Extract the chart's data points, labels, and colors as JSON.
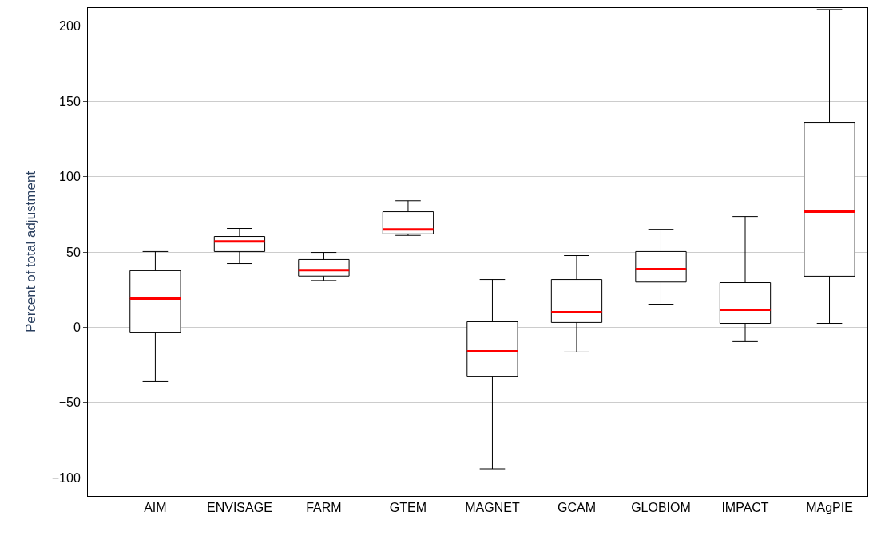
{
  "chart_data": {
    "type": "box",
    "ylabel": "Percent of total adjustment",
    "categories": [
      "AIM",
      "ENVISAGE",
      "FARM",
      "GTEM",
      "MAGNET",
      "GCAM",
      "GLOBIOM",
      "IMPACT",
      "MAgPIE"
    ],
    "boxes": [
      {
        "low": -36,
        "q1": -3.7,
        "median": 19,
        "q3": 37.6,
        "high": 50.3
      },
      {
        "low": 42.3,
        "q1": 50.3,
        "median": 57,
        "q3": 60.3,
        "high": 65.6
      },
      {
        "low": 31,
        "q1": 34,
        "median": 38,
        "q3": 45,
        "high": 49.7
      },
      {
        "low": 61,
        "q1": 62,
        "median": 65,
        "q3": 76.7,
        "high": 84
      },
      {
        "low": -94,
        "q1": -32.8,
        "median": -15.9,
        "q3": 3.7,
        "high": 31.7
      },
      {
        "low": -16.4,
        "q1": 3.2,
        "median": 10,
        "q3": 31.7,
        "high": 47.6
      },
      {
        "low": 15.3,
        "q1": 30,
        "median": 38.6,
        "q3": 50.3,
        "high": 65
      },
      {
        "low": -9.5,
        "q1": 2.6,
        "median": 11.6,
        "q3": 29.6,
        "high": 73.5
      },
      {
        "low": 2.6,
        "q1": 33.9,
        "median": 76.7,
        "q3": 136,
        "high": 211
      }
    ],
    "color": "#000000",
    "ylim": [
      -112,
      212
    ],
    "yticks": [
      -100,
      -50,
      0,
      50,
      100,
      150,
      200
    ],
    "grid": "y"
  }
}
